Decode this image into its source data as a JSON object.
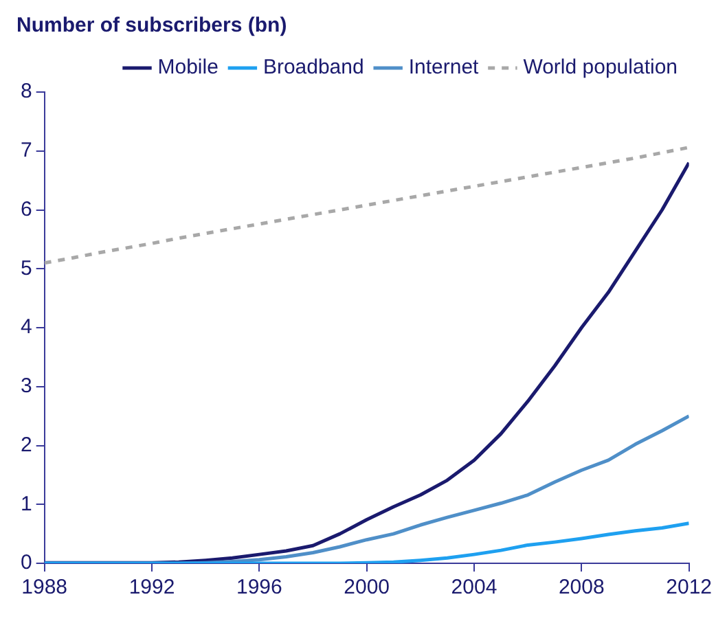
{
  "chart_data": {
    "type": "line",
    "title": "Number of subscribers (bn)",
    "x": [
      1988,
      1989,
      1990,
      1991,
      1992,
      1993,
      1994,
      1995,
      1996,
      1997,
      1998,
      1999,
      2000,
      2001,
      2002,
      2003,
      2004,
      2005,
      2006,
      2007,
      2008,
      2009,
      2010,
      2011,
      2012
    ],
    "series": [
      {
        "name": "Mobile",
        "color": "#1a1a6e",
        "values": [
          0.01,
          0.01,
          0.01,
          0.01,
          0.01,
          0.02,
          0.05,
          0.09,
          0.15,
          0.21,
          0.3,
          0.5,
          0.74,
          0.96,
          1.16,
          1.41,
          1.75,
          2.2,
          2.75,
          3.35,
          4.0,
          4.6,
          5.3,
          6.0,
          6.8
        ]
      },
      {
        "name": "Internet",
        "color": "#4f8fc8",
        "values": [
          0,
          0,
          0,
          0,
          0,
          0,
          0.01,
          0.03,
          0.06,
          0.11,
          0.18,
          0.28,
          0.4,
          0.5,
          0.65,
          0.78,
          0.9,
          1.02,
          1.16,
          1.38,
          1.58,
          1.75,
          2.02,
          2.25,
          2.5
        ]
      },
      {
        "name": "Broadband",
        "color": "#1ea0f0",
        "values": [
          0,
          0,
          0,
          0,
          0,
          0,
          0,
          0,
          0,
          0,
          0,
          0,
          0.01,
          0.02,
          0.05,
          0.09,
          0.15,
          0.22,
          0.31,
          0.36,
          0.42,
          0.49,
          0.55,
          0.6,
          0.68
        ]
      },
      {
        "name": "World population",
        "color": "#a8a8a8",
        "line_style": "dashed",
        "values": [
          5.1,
          5.18,
          5.27,
          5.35,
          5.43,
          5.52,
          5.6,
          5.68,
          5.76,
          5.84,
          5.92,
          6.0,
          6.08,
          6.16,
          6.24,
          6.32,
          6.4,
          6.48,
          6.56,
          6.64,
          6.72,
          6.8,
          6.88,
          6.97,
          7.06
        ]
      }
    ],
    "xlim": [
      1988,
      2012
    ],
    "xticks": [
      1988,
      1992,
      1996,
      2000,
      2004,
      2008,
      2012
    ],
    "ylim": [
      0,
      8
    ],
    "yticks": [
      0,
      1,
      2,
      3,
      4,
      5,
      6,
      7,
      8
    ],
    "grid": false,
    "legend": "top",
    "marker": "none"
  }
}
